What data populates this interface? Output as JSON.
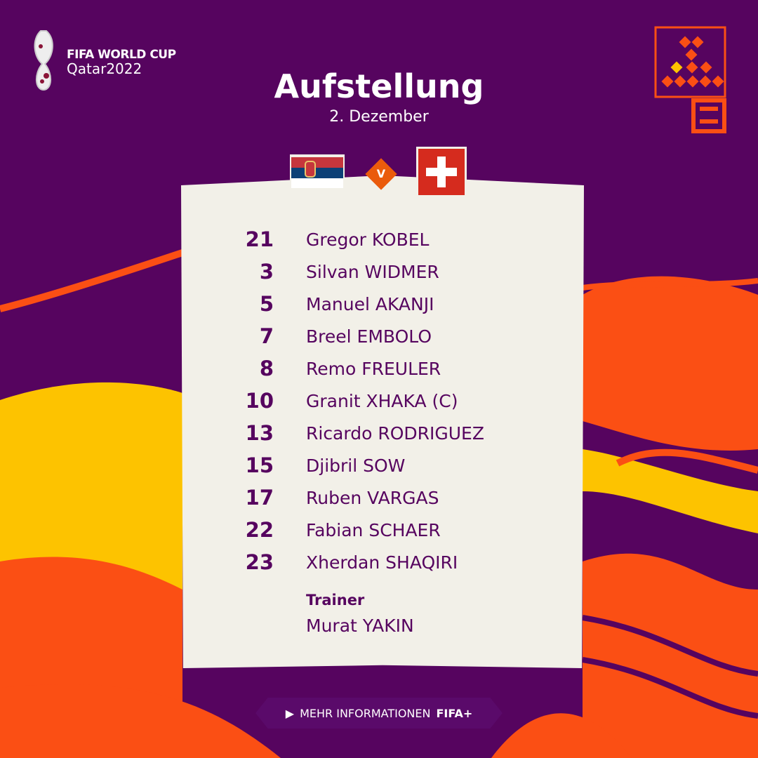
{
  "logo": {
    "line1": "FIFA WORLD CUP",
    "line2": "Qatar2022"
  },
  "header": {
    "title": "Aufstellung",
    "date": "2. Dezember"
  },
  "match": {
    "home_flag": "serbia-flag-icon",
    "away_flag": "switzerland-flag-icon",
    "versus": "V"
  },
  "lineup": [
    {
      "number": "21",
      "name": "Gregor KOBEL"
    },
    {
      "number": "3",
      "name": "Silvan WIDMER"
    },
    {
      "number": "5",
      "name": "Manuel AKANJI"
    },
    {
      "number": "7",
      "name": "Breel EMBOLO"
    },
    {
      "number": "8",
      "name": "Remo FREULER"
    },
    {
      "number": "10",
      "name": "Granit XHAKA (C)"
    },
    {
      "number": "13",
      "name": "Ricardo RODRIGUEZ"
    },
    {
      "number": "15",
      "name": "Djibril SOW"
    },
    {
      "number": "17",
      "name": "Ruben VARGAS"
    },
    {
      "number": "22",
      "name": "Fabian SCHAER"
    },
    {
      "number": "23",
      "name": "Xherdan SHAQIRI"
    }
  ],
  "trainer": {
    "label": "Trainer",
    "name": "Murat YAKIN"
  },
  "cta": {
    "label": "MEHR INFORMATIONEN",
    "brand": "FIFA+"
  },
  "colors": {
    "purple": "#56045f",
    "orange": "#fb4f14",
    "yellow": "#fdc300",
    "card": "#f2f0e8"
  }
}
